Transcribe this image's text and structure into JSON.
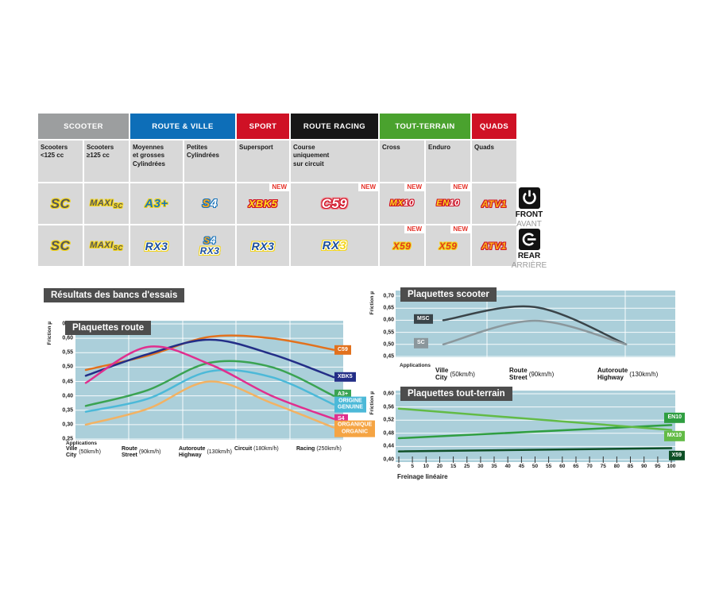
{
  "section_title": "Résultats des bancs d'essais",
  "colors": {
    "plot_bg": "#abcfda",
    "panel_title_bg": "#4d4d4d",
    "new_red": "#e5332a",
    "cell_bg": "#d8d8d8"
  },
  "position_markers": {
    "front": {
      "en": "FRONT",
      "fr": "AVANT"
    },
    "rear": {
      "en": "REAR",
      "fr": "ARRIÈRE"
    }
  },
  "table": {
    "new_label": "NEW",
    "groups": [
      {
        "label": "SCOOTER",
        "color": "#9c9e9f",
        "span": 2
      },
      {
        "label": "ROUTE & VILLE",
        "color": "#0d6eb8",
        "span": 2
      },
      {
        "label": "SPORT",
        "color": "#cf1125",
        "span": 1
      },
      {
        "label": "ROUTE RACING",
        "color": "#171717",
        "span": 1
      },
      {
        "label": "TOUT-TERRAIN",
        "color": "#4aa22e",
        "span": 2
      },
      {
        "label": "QUADS",
        "color": "#cf1125",
        "span": 1
      }
    ],
    "subheaders": [
      "Scooters\n<125 cc",
      "Scooters\n≥125 cc",
      "Moyennes\net grosses\nCylindrées",
      "Petites\nCylindrées",
      "Supersport",
      "Course\nuniquement\nsur circuit",
      "Cross",
      "Enduro",
      "Quads"
    ],
    "rows": [
      {
        "name": "front",
        "cells": [
          {
            "badges": [
              {
                "id": "sc",
                "size": 17,
                "o1": "#f3d51a",
                "parts": [
                  {
                    "t": "SC",
                    "color": "#55565a"
                  }
                ]
              }
            ]
          },
          {
            "badges": [
              {
                "id": "maxisc",
                "size": 11,
                "o1": "#f3d51a",
                "parts": [
                  {
                    "t": "MAXI",
                    "color": "#55565a"
                  },
                  {
                    "t": "SC",
                    "color": "#55565a",
                    "size": 8,
                    "dy": 3
                  }
                ]
              }
            ]
          },
          {
            "badges": [
              {
                "id": "a3plus",
                "size": 15,
                "o1": "#f3d51a",
                "parts": [
                  {
                    "t": "A3+",
                    "color": "#1b75bb"
                  }
                ]
              }
            ]
          },
          {
            "badges": [
              {
                "id": "s4",
                "size": 15,
                "o1": "#1b75bb",
                "parts": [
                  {
                    "t": "S",
                    "color": "#f9a51a"
                  },
                  {
                    "t": "4",
                    "color": "#ffffff"
                  }
                ]
              }
            ]
          },
          {
            "new": true,
            "badges": [
              {
                "id": "xbk5",
                "size": 13,
                "o1": "#cf1125",
                "parts": [
                  {
                    "t": "XBK5",
                    "color": "#ffd91e"
                  }
                ]
              }
            ]
          },
          {
            "new": true,
            "badges": [
              {
                "id": "c59",
                "size": 17,
                "o1": "#cf1125",
                "o2": "#ef8f96",
                "parts": [
                  {
                    "t": "C59",
                    "color": "#ffffff"
                  }
                ]
              }
            ]
          },
          {
            "new": true,
            "badges": [
              {
                "id": "mx10",
                "size": 11,
                "o1": "#cf1125",
                "parts": [
                  {
                    "t": "MX",
                    "color": "#ffd91e"
                  },
                  {
                    "t": "10",
                    "color": "#ffffff"
                  }
                ]
              }
            ]
          },
          {
            "new": true,
            "badges": [
              {
                "id": "en10",
                "size": 11,
                "o1": "#cf1125",
                "parts": [
                  {
                    "t": "EN",
                    "color": "#ffd91e"
                  },
                  {
                    "t": "10",
                    "color": "#ffffff"
                  }
                ]
              }
            ]
          },
          {
            "badges": [
              {
                "id": "atv1",
                "size": 12,
                "o1": "#cf1125",
                "parts": [
                  {
                    "t": "ATV1",
                    "color": "#f9b21a"
                  }
                ]
              }
            ]
          }
        ]
      },
      {
        "name": "rear",
        "cells": [
          {
            "badges": [
              {
                "id": "sc",
                "size": 17,
                "o1": "#f3d51a",
                "parts": [
                  {
                    "t": "SC",
                    "color": "#55565a"
                  }
                ]
              }
            ]
          },
          {
            "badges": [
              {
                "id": "maxisc",
                "size": 11,
                "o1": "#f3d51a",
                "parts": [
                  {
                    "t": "MAXI",
                    "color": "#55565a"
                  },
                  {
                    "t": "SC",
                    "color": "#55565a",
                    "size": 8,
                    "dy": 3
                  }
                ]
              }
            ]
          },
          {
            "badges": [
              {
                "id": "rx3",
                "size": 14,
                "o1": "#ffffff",
                "o2": "#f3d51a",
                "parts": [
                  {
                    "t": "RX3",
                    "color": "#1c4f9c"
                  }
                ]
              }
            ]
          },
          {
            "badges": [
              {
                "id": "s4",
                "size": 12,
                "o1": "#1b75bb",
                "parts": [
                  {
                    "t": "S",
                    "color": "#f9a51a"
                  },
                  {
                    "t": "4",
                    "color": "#ffffff"
                  }
                ]
              },
              {
                "id": "rx3",
                "size": 12,
                "o1": "#ffffff",
                "o2": "#f3d51a",
                "parts": [
                  {
                    "t": "RX3",
                    "color": "#1c4f9c"
                  }
                ]
              }
            ]
          },
          {
            "badges": [
              {
                "id": "rx3",
                "size": 14,
                "o1": "#ffffff",
                "o2": "#f3d51a",
                "parts": [
                  {
                    "t": "RX3",
                    "color": "#1c4f9c"
                  }
                ]
              }
            ]
          },
          {
            "badges": [
              {
                "id": "rx3-racing",
                "size": 15,
                "o1": "#ffffff",
                "o2": "#f3d51a",
                "parts": [
                  {
                    "t": "RX",
                    "color": "#1c4f9c"
                  },
                  {
                    "t": "3",
                    "color": "#f3d51a"
                  }
                ]
              }
            ]
          },
          {
            "new": true,
            "badges": [
              {
                "id": "x59",
                "size": 12,
                "o1": "#f3d51a",
                "parts": [
                  {
                    "t": "X59",
                    "color": "#e03c1e"
                  }
                ]
              }
            ]
          },
          {
            "new": true,
            "badges": [
              {
                "id": "x59",
                "size": 12,
                "o1": "#f3d51a",
                "parts": [
                  {
                    "t": "X59",
                    "color": "#e03c1e"
                  }
                ]
              }
            ]
          },
          {
            "badges": [
              {
                "id": "atv1",
                "size": 12,
                "o1": "#cf1125",
                "parts": [
                  {
                    "t": "ATV1",
                    "color": "#f9b21a"
                  }
                ]
              }
            ]
          }
        ]
      }
    ]
  },
  "chart_data": [
    {
      "id": "route",
      "type": "line",
      "title": "Plaquettes route",
      "ylabel": "Friction µ",
      "x_note": "Applications",
      "ylim": [
        0.25,
        0.65
      ],
      "grid": true,
      "legend_position": "right-of-line-ends",
      "yticks": [
        {
          "v": 0.65,
          "t": "0,65"
        },
        {
          "v": 0.6,
          "t": "0,60"
        },
        {
          "v": 0.55,
          "t": "0,55"
        },
        {
          "v": 0.5,
          "t": "0,50"
        },
        {
          "v": 0.45,
          "t": "0,45"
        },
        {
          "v": 0.4,
          "t": "0,40"
        },
        {
          "v": 0.35,
          "t": "0,35"
        },
        {
          "v": 0.3,
          "t": "0,30"
        },
        {
          "v": 0.25,
          "t": "0,25"
        }
      ],
      "categories": [
        {
          "l1": "Ville",
          "l2": "City",
          "speed": "(50km/h)"
        },
        {
          "l1": "Route",
          "l2": "Street",
          "speed": "(90km/h)"
        },
        {
          "l1": "Autoroute",
          "l2": "Highway",
          "speed": "(130km/h)"
        },
        {
          "l1": "Circuit",
          "speed": "(180km/h)"
        },
        {
          "l1": "Racing",
          "speed": "(250km/h)"
        }
      ],
      "series": [
        {
          "name": "C59",
          "color": "#e2711d",
          "label": [
            "C59"
          ],
          "label_v": 0.56,
          "values": [
            0.49,
            0.54,
            0.605,
            0.6,
            0.56
          ]
        },
        {
          "name": "XBK5",
          "color": "#232e87",
          "label": [
            "XBK5"
          ],
          "label_v": 0.465,
          "values": [
            0.47,
            0.545,
            0.595,
            0.545,
            0.465
          ]
        },
        {
          "name": "A3+",
          "color": "#3aa352",
          "label": [
            "A3+"
          ],
          "label_v": 0.405,
          "values": [
            0.365,
            0.42,
            0.515,
            0.5,
            0.4
          ]
        },
        {
          "name": "ORIGINE GENUINE",
          "color": "#4cb9d8",
          "label": [
            "ORIGINE",
            "GENUINE"
          ],
          "label_v": 0.37,
          "values": [
            0.345,
            0.39,
            0.485,
            0.465,
            0.37
          ]
        },
        {
          "name": "S4",
          "color": "#e02f8e",
          "label": [
            "S4"
          ],
          "label_v": 0.32,
          "values": [
            0.445,
            0.57,
            0.51,
            0.4,
            0.32
          ]
        },
        {
          "name": "ORGANIQUE ORGANIC",
          "color": "#f2b263",
          "label_bg": "#f5a443",
          "label": [
            "ORGANIQUE",
            "ORGANIC"
          ],
          "label_v": 0.285,
          "values": [
            0.3,
            0.355,
            0.45,
            0.375,
            0.29
          ]
        }
      ]
    },
    {
      "id": "scooter",
      "type": "line",
      "title": "Plaquettes scooter",
      "ylabel": "Friction µ",
      "x_note": "Applications",
      "ylim": [
        0.45,
        0.7
      ],
      "grid": true,
      "legend_position": "left-of-line-starts",
      "yticks": [
        {
          "v": 0.7,
          "t": "0,70"
        },
        {
          "v": 0.65,
          "t": "0,65"
        },
        {
          "v": 0.6,
          "t": "0,60"
        },
        {
          "v": 0.55,
          "t": "0,55"
        },
        {
          "v": 0.5,
          "t": "0,50"
        },
        {
          "v": 0.45,
          "t": "0,45"
        }
      ],
      "categories": [
        {
          "l1": "Ville",
          "l2": "City",
          "speed": "(50km/h)"
        },
        {
          "l1": "Route",
          "l2": "Street",
          "speed": "(90km/h)"
        },
        {
          "l1": "Autoroute",
          "l2": "Highway",
          "speed": "(130km/h)"
        }
      ],
      "series": [
        {
          "name": "MSC",
          "color": "#3a4449",
          "label": [
            "MSC"
          ],
          "label_v": 0.605,
          "values": [
            0.6,
            0.655,
            0.5
          ]
        },
        {
          "name": "SC",
          "color": "#8b979c",
          "label": [
            "SC"
          ],
          "label_v": 0.505,
          "values": [
            0.5,
            0.598,
            0.5
          ]
        }
      ]
    },
    {
      "id": "tt",
      "type": "line",
      "title": "Plaquettes tout-terrain",
      "ylabel": "Friction µ",
      "xlabel": "Freinage linéaire",
      "ylim": [
        0.4,
        0.6
      ],
      "xlim": [
        0,
        100
      ],
      "grid": true,
      "legend_position": "right-of-line-ends",
      "yticks": [
        {
          "v": 0.6,
          "t": "0,60"
        },
        {
          "v": 0.56,
          "t": "0,56"
        },
        {
          "v": 0.52,
          "t": "0,52"
        },
        {
          "v": 0.48,
          "t": "0,48"
        },
        {
          "v": 0.44,
          "t": "0,44"
        },
        {
          "v": 0.4,
          "t": "0,40"
        }
      ],
      "xticks": [
        "0",
        "5",
        "10",
        "20",
        "15",
        "25",
        "30",
        "35",
        "40",
        "45",
        "50",
        "55",
        "60",
        "65",
        "70",
        "75",
        "80",
        "85",
        "90",
        "95",
        "100"
      ],
      "series": [
        {
          "name": "EN10",
          "color": "#2f9e41",
          "label": [
            "EN10"
          ],
          "label_v": 0.527,
          "values": [
            0.465,
            0.505
          ]
        },
        {
          "name": "MX10",
          "color": "#62bb46",
          "label": [
            "MX10"
          ],
          "label_v": 0.472,
          "values": [
            0.555,
            0.49
          ]
        },
        {
          "name": "X59",
          "color": "#0e4f26",
          "label": [
            "X59"
          ],
          "label_v": 0.412,
          "values": [
            0.425,
            0.435
          ]
        }
      ]
    }
  ]
}
